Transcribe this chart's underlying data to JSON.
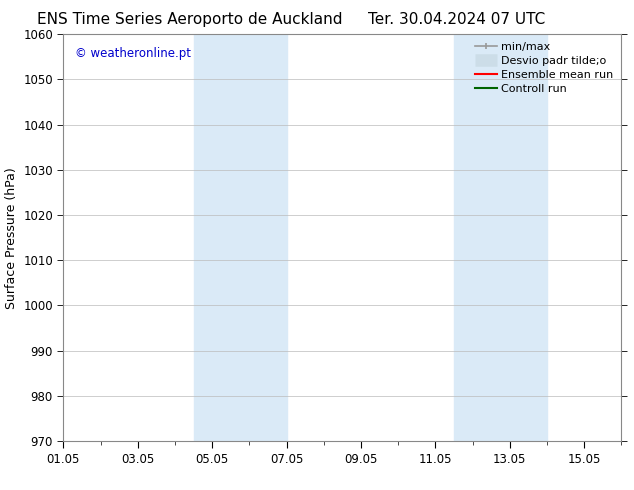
{
  "title_left": "ENS Time Series Aeroporto de Auckland",
  "title_right": "Ter. 30.04.2024 07 UTC",
  "ylabel": "Surface Pressure (hPa)",
  "ylim": [
    970,
    1060
  ],
  "yticks": [
    970,
    980,
    990,
    1000,
    1010,
    1020,
    1030,
    1040,
    1050,
    1060
  ],
  "xtick_labels": [
    "01.05",
    "03.05",
    "05.05",
    "07.05",
    "09.05",
    "11.05",
    "13.05",
    "15.05"
  ],
  "xtick_positions": [
    0,
    2,
    4,
    6,
    8,
    10,
    12,
    14
  ],
  "xlim": [
    0,
    15
  ],
  "shaded_bands": [
    {
      "x_start": 3.5,
      "x_end": 4.5,
      "color": "#daeaf7",
      "alpha": 1.0
    },
    {
      "x_start": 4.5,
      "x_end": 6.0,
      "color": "#daeaf7",
      "alpha": 1.0
    },
    {
      "x_start": 10.5,
      "x_end": 11.5,
      "color": "#daeaf7",
      "alpha": 1.0
    },
    {
      "x_start": 11.5,
      "x_end": 13.0,
      "color": "#daeaf7",
      "alpha": 1.0
    }
  ],
  "watermark": "© weatheronline.pt",
  "watermark_color": "#0000cc",
  "legend_entries": [
    {
      "label": "min/max",
      "color": "#aaaaaa",
      "lw": 1.2
    },
    {
      "label": "Desvio padr tilde;o",
      "color": "#ccddee",
      "lw": 8
    },
    {
      "label": "Ensemble mean run",
      "color": "#ff0000",
      "lw": 1.5
    },
    {
      "label": "Controll run",
      "color": "#006400",
      "lw": 1.5
    }
  ],
  "background_color": "#ffffff",
  "plot_bg_color": "#ffffff",
  "grid_color": "#bbbbbb",
  "title_fontsize": 11,
  "axis_label_fontsize": 9,
  "tick_fontsize": 8.5,
  "legend_fontsize": 8
}
